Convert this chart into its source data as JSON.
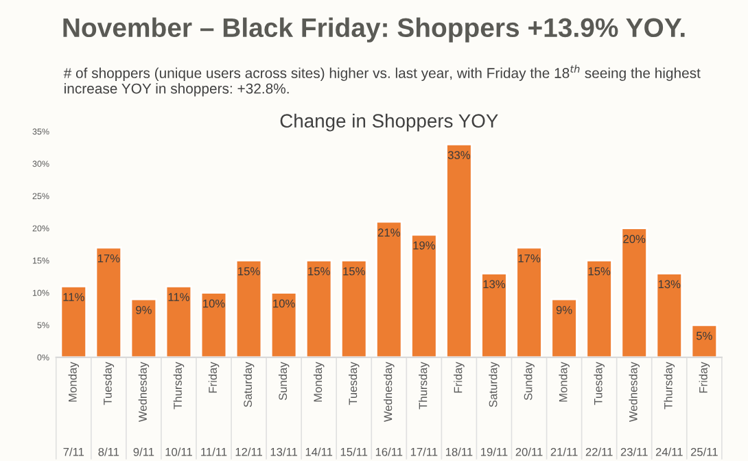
{
  "chart_data": {
    "type": "bar",
    "title": "November – Black Friday: Shoppers +13.9% YOY.",
    "subtitle": "# of shoppers (unique users across sites) higher vs. last year, with Friday the 18$^{th}$ seeing the highest increase YOY in shoppers: +32.8%.",
    "annotations": [
      "Change in Shoppers YOY"
    ],
    "categories": [
      "Monday\n7/11",
      "Tuesday\n8/11",
      "Wednesday\n9/11",
      "Thursday\n10/11",
      "Friday\n11/11",
      "Saturday\n12/11",
      "Sunday\n13/11",
      "Monday\n14/11",
      "Tuesday\n15/11",
      "Wednesday\n16/11",
      "Thursday\n17/11",
      "Friday\n18/11",
      "Saturday\n19/11",
      "Sunday\n20/11",
      "Monday\n21/11",
      "Tuesday\n22/11",
      "Wednesday\n23/11",
      "Thursday\n24/11",
      "Friday\n25/11"
    ],
    "values": [
      11,
      17,
      9,
      11,
      10,
      15,
      10,
      15,
      15,
      21,
      19,
      33,
      13,
      17,
      9,
      15,
      20,
      13,
      5
    ],
    "value_labels": [
      "11%",
      "17%",
      "9%",
      "11%",
      "10%",
      "15%",
      "10%",
      "15%",
      "15%",
      "21%",
      "19%",
      "33%",
      "13%",
      "17%",
      "9%",
      "15%",
      "20%",
      "13%",
      "5%"
    ],
    "color": "#ed7d31",
    "ylim": [
      0,
      35
    ],
    "yticks": [
      {
        "value": 0,
        "label": "0%"
      },
      {
        "value": 5,
        "label": "5%"
      },
      {
        "value": 10,
        "label": "10%"
      },
      {
        "value": 15,
        "label": "15%"
      },
      {
        "value": 20,
        "label": "20%"
      },
      {
        "value": 25,
        "label": "25%"
      },
      {
        "value": 30,
        "label": "30%"
      },
      {
        "value": 35,
        "label": "35%"
      }
    ],
    "grid": false,
    "legend": false
  }
}
